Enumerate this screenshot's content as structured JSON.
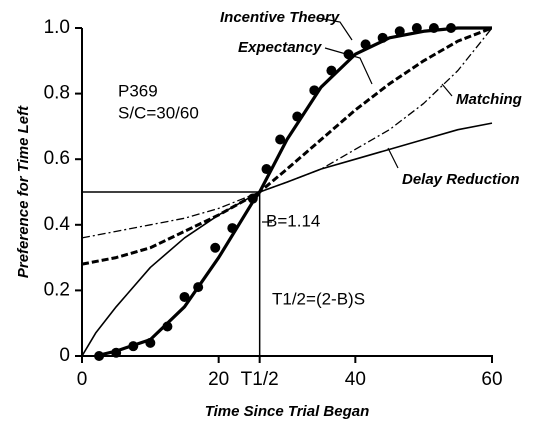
{
  "chart_data": {
    "type": "line",
    "xlabel": "Time Since Trial Began",
    "ylabel": "Preference for Time Left",
    "xlim": [
      0,
      60
    ],
    "ylim": [
      0,
      1
    ],
    "xticks": [
      0,
      20,
      {
        "value": 26,
        "label": "T1/2"
      },
      40,
      60
    ],
    "yticks": [
      0,
      0.2,
      0.4,
      0.6,
      0.8,
      {
        "value": 1,
        "label": "1.0"
      }
    ],
    "color": "#000000",
    "series": [
      {
        "name": "Incentive Theory",
        "style": "thick",
        "x": [
          2,
          5,
          10,
          15,
          20,
          25,
          26,
          30,
          35,
          40,
          45,
          50,
          55,
          60
        ],
        "values": [
          0,
          0.015,
          0.05,
          0.15,
          0.3,
          0.47,
          0.5,
          0.66,
          0.82,
          0.92,
          0.97,
          0.99,
          1.0,
          1.0
        ]
      },
      {
        "name": "Expectancy",
        "style": "dashed",
        "x": [
          0,
          5,
          10,
          15,
          20,
          26,
          30,
          35,
          40,
          45,
          50,
          55,
          60
        ],
        "values": [
          0.28,
          0.3,
          0.33,
          0.38,
          0.43,
          0.5,
          0.57,
          0.66,
          0.75,
          0.83,
          0.9,
          0.96,
          1.0
        ]
      },
      {
        "name": "Matching",
        "style": "dashdot",
        "x": [
          0,
          5,
          10,
          15,
          20,
          26,
          30,
          35,
          40,
          45,
          50,
          55,
          60
        ],
        "values": [
          0.36,
          0.38,
          0.4,
          0.42,
          0.45,
          0.5,
          0.53,
          0.57,
          0.63,
          0.69,
          0.77,
          0.87,
          1.0
        ]
      },
      {
        "name": "Delay Reduction",
        "style": "thin",
        "x": [
          0,
          2,
          5,
          10,
          15,
          20,
          26,
          30,
          35,
          40,
          45,
          50,
          55,
          60
        ],
        "values": [
          0,
          0.07,
          0.15,
          0.27,
          0.36,
          0.43,
          0.5,
          0.53,
          0.57,
          0.6,
          0.63,
          0.66,
          0.69,
          0.71
        ]
      }
    ],
    "points": {
      "x": [
        2.5,
        5,
        7.5,
        10,
        12.5,
        15,
        17,
        19.5,
        22,
        25,
        27,
        29,
        31.5,
        34,
        36.5,
        39,
        41.5,
        44,
        46.5,
        49,
        51.5,
        54
      ],
      "values": [
        0,
        0.01,
        0.03,
        0.04,
        0.09,
        0.18,
        0.21,
        0.33,
        0.39,
        0.48,
        0.57,
        0.66,
        0.73,
        0.81,
        0.87,
        0.92,
        0.95,
        0.97,
        0.99,
        1.0,
        1.0,
        1.0
      ]
    },
    "reference_point": {
      "x": 26,
      "y": 0.5
    },
    "annotations": [
      "P369",
      "S/C=30/60",
      "B=1.14",
      "T1/2=(2-B)S"
    ]
  }
}
